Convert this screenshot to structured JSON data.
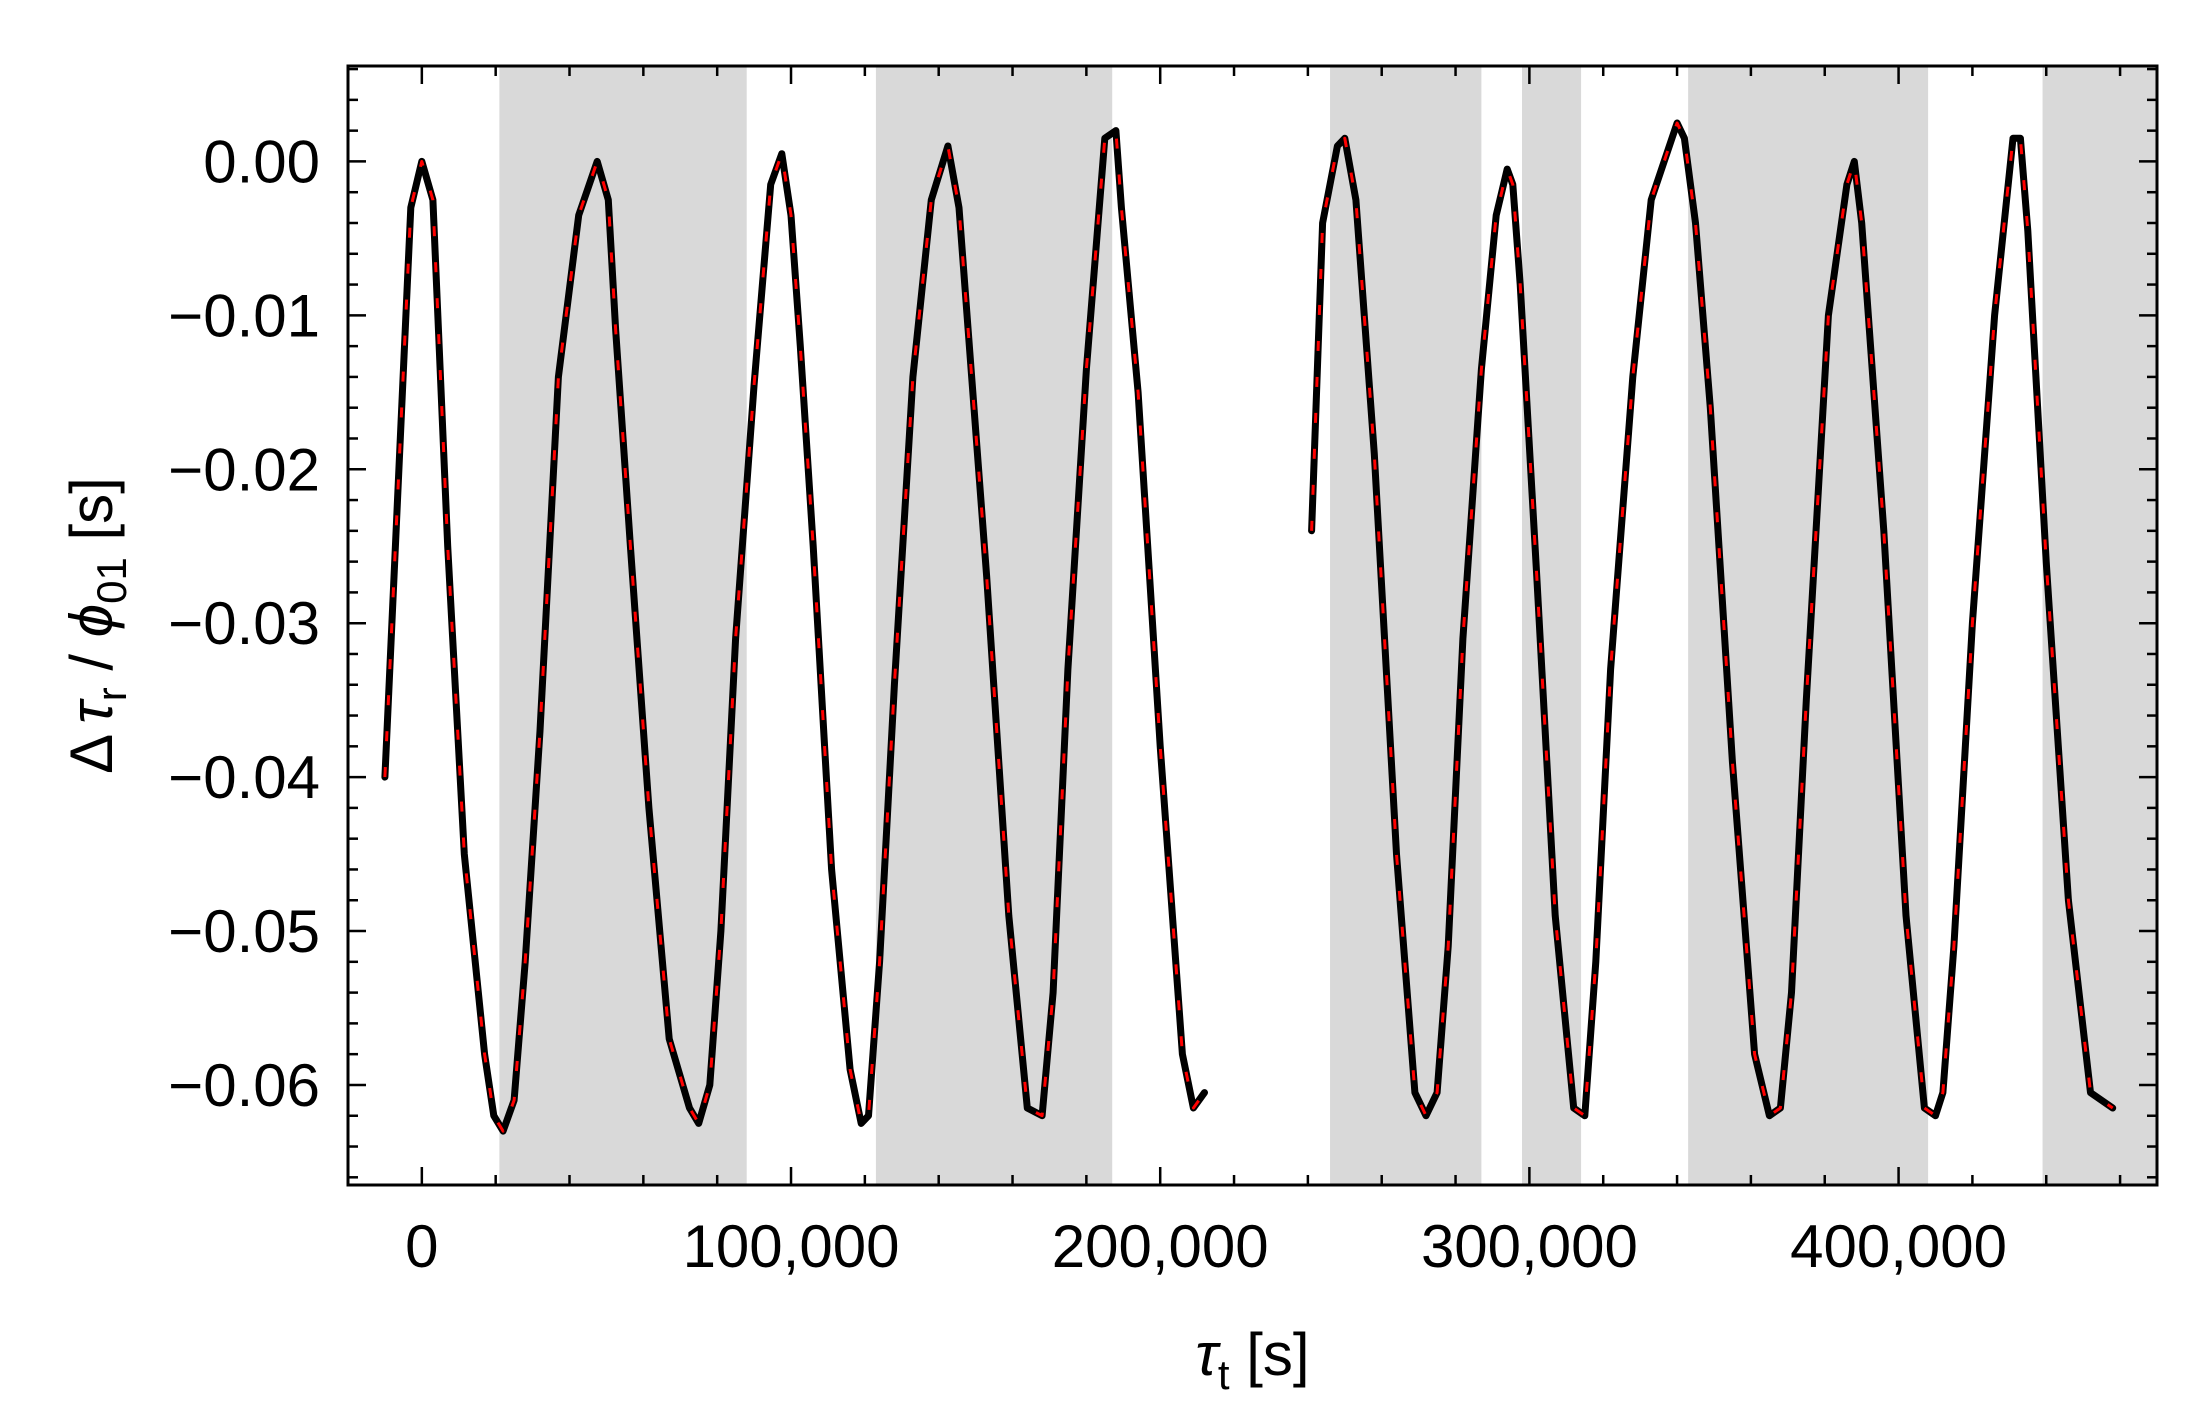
{
  "chart_data": {
    "type": "line",
    "title": "",
    "xlabel": "τt [s]",
    "ylabel": "Δτr / ϕ01 [s]",
    "xlabel_parts": {
      "symbol": "τ",
      "subscript": "t",
      "unit": " [s]"
    },
    "ylabel_parts": {
      "prefix": "Δ",
      "symbol": "τ",
      "subscript": "r",
      "middle": " / ",
      "symbol2": "ϕ",
      "subscript2": "01",
      "unit": " [s]"
    },
    "xlim": [
      -20000,
      470000
    ],
    "ylim": [
      -0.0665,
      0.0062
    ],
    "x_ticks": [
      0,
      100000,
      200000,
      300000,
      400000
    ],
    "x_tick_labels": [
      "0",
      "100,000",
      "200,000",
      "300,000",
      "400,000"
    ],
    "y_ticks": [
      0.0,
      -0.01,
      -0.02,
      -0.03,
      -0.04,
      -0.05,
      -0.06
    ],
    "y_tick_labels": [
      "0.00",
      "−0.01",
      "−0.02",
      "−0.03",
      "−0.04",
      "−0.05",
      "−0.06"
    ],
    "grid": false,
    "legend": "none",
    "shaded_regions_x": [
      [
        21000,
        88000
      ],
      [
        123000,
        187000
      ],
      [
        246000,
        287000
      ],
      [
        298000,
        314000
      ],
      [
        343000,
        408000
      ],
      [
        439000,
        470000
      ]
    ],
    "shade_color": "#d9d9d9",
    "series": [
      {
        "color": "#000000",
        "dash_color": "#ff0000",
        "style": "solid-black-with-red-dashes",
        "segments": [
          {
            "x": [
              -10000,
              -3000,
              0,
              3000,
              7000,
              11500,
              17000,
              19500,
              22000,
              25000,
              28000,
              32000,
              37000,
              42500,
              47500,
              50500,
              52500,
              56500,
              61500,
              67000,
              72500,
              75000,
              78000,
              81000,
              85000,
              90000,
              94500,
              97500,
              100000,
              102500,
              106000,
              111000,
              116000,
              119000,
              121000,
              124000,
              128000,
              133000,
              138000,
              142500,
              145500,
              148000,
              153000,
              159000,
              164000,
              168000,
              171000,
              175000,
              180000,
              185000,
              188000,
              189500,
              194000,
              200000,
              206000,
              209000,
              212000
            ],
            "y": [
              -0.04,
              -0.003,
              0.0,
              -0.0025,
              -0.025,
              -0.045,
              -0.058,
              -0.062,
              -0.063,
              -0.061,
              -0.052,
              -0.037,
              -0.014,
              -0.0035,
              0.0,
              -0.0025,
              -0.011,
              -0.025,
              -0.042,
              -0.057,
              -0.0615,
              -0.0625,
              -0.06,
              -0.05,
              -0.031,
              -0.0145,
              -0.0015,
              0.0005,
              -0.0035,
              -0.012,
              -0.025,
              -0.046,
              -0.059,
              -0.0625,
              -0.062,
              -0.052,
              -0.034,
              -0.014,
              -0.0025,
              0.001,
              -0.003,
              -0.011,
              -0.027,
              -0.049,
              -0.0615,
              -0.062,
              -0.054,
              -0.033,
              -0.0135,
              0.0015,
              0.002,
              -0.003,
              -0.015,
              -0.038,
              -0.058,
              -0.0615,
              -0.0605
            ]
          },
          {
            "x": [
              241000,
              244000,
              248000,
              250000,
              253000,
              258000,
              264000,
              269000,
              272000,
              275000,
              278000,
              282000,
              287000,
              291000,
              294000,
              295500,
              297500,
              302000,
              307000,
              312000,
              315000,
              318000,
              322000,
              328000,
              333000,
              340000,
              342000,
              345000,
              349000,
              355000,
              361000,
              365000,
              368000,
              371000,
              375000,
              381000,
              386000,
              388000,
              390000,
              396000,
              402000,
              407000,
              410000,
              412000,
              415000,
              420000,
              426000,
              431000,
              433000,
              435000,
              440000,
              446000,
              452000,
              458000
            ],
            "y": [
              -0.024,
              -0.004,
              0.001,
              0.0015,
              -0.0025,
              -0.019,
              -0.045,
              -0.0605,
              -0.062,
              -0.0605,
              -0.051,
              -0.031,
              -0.0135,
              -0.0035,
              -0.0005,
              -0.0015,
              -0.008,
              -0.027,
              -0.049,
              -0.0615,
              -0.062,
              -0.052,
              -0.033,
              -0.014,
              -0.0025,
              0.0025,
              0.0015,
              -0.004,
              -0.016,
              -0.039,
              -0.058,
              -0.062,
              -0.0615,
              -0.054,
              -0.035,
              -0.01,
              -0.0015,
              0.0,
              -0.004,
              -0.024,
              -0.049,
              -0.0615,
              -0.062,
              -0.0605,
              -0.051,
              -0.03,
              -0.01,
              0.0015,
              0.0015,
              -0.0045,
              -0.026,
              -0.048,
              -0.0605,
              -0.0615
            ]
          }
        ]
      }
    ]
  }
}
